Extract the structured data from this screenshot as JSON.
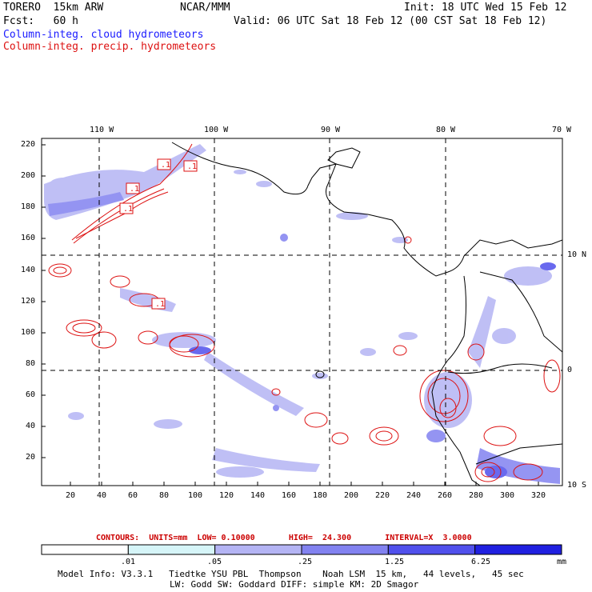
{
  "header": {
    "model": "TORERO  15km ARW",
    "org": "NCAR/MMM",
    "init": "Init: 18 UTC Wed 15 Feb 12",
    "fcst": "Fcst:   60 h",
    "valid": "Valid: 06 UTC Sat 18 Feb 12 (00 CST Sat 18 Feb 12)",
    "layer1": "Column-integ. cloud hydrometeors",
    "layer2": "Column-integ. precip. hydrometeors"
  },
  "map": {
    "lon_labels": [
      "110 W",
      "100 W",
      "90 W",
      "80 W",
      "70 W"
    ],
    "lat_labels": [
      "10 N",
      "0",
      "10 S"
    ],
    "y_ticks": [
      "220",
      "200",
      "180",
      "160",
      "140",
      "120",
      "100",
      "80",
      "60",
      "40",
      "20"
    ],
    "x_ticks": [
      "20",
      "40",
      "60",
      "80",
      "100",
      "120",
      "140",
      "160",
      "180",
      "200",
      "220",
      "240",
      "260",
      "280",
      "300",
      "320"
    ],
    "contour_labels": [
      ".1",
      ".1",
      ".1",
      ".1",
      ".1"
    ]
  },
  "legend": {
    "contours": "CONTOURS:  UNITS=mm  LOW= 0.10000       HIGH=  24.300       INTERVAL=X  3.0000",
    "breaks": [
      ".01",
      ".05",
      ".25",
      "1.25",
      "6.25"
    ],
    "units": "mm",
    "colors": [
      "#ffffff",
      "#d6f5f8",
      "#b4b4f4",
      "#8282f0",
      "#5050ec",
      "#2020e0"
    ]
  },
  "footer": {
    "line1": "Model Info: V3.3.1   Tiedtke YSU PBL  Thompson    Noah LSM  15 km,   44 levels,   45 sec",
    "line2": "LW: Godd SW: Goddard DIFF: simple KM: 2D Smagor"
  }
}
